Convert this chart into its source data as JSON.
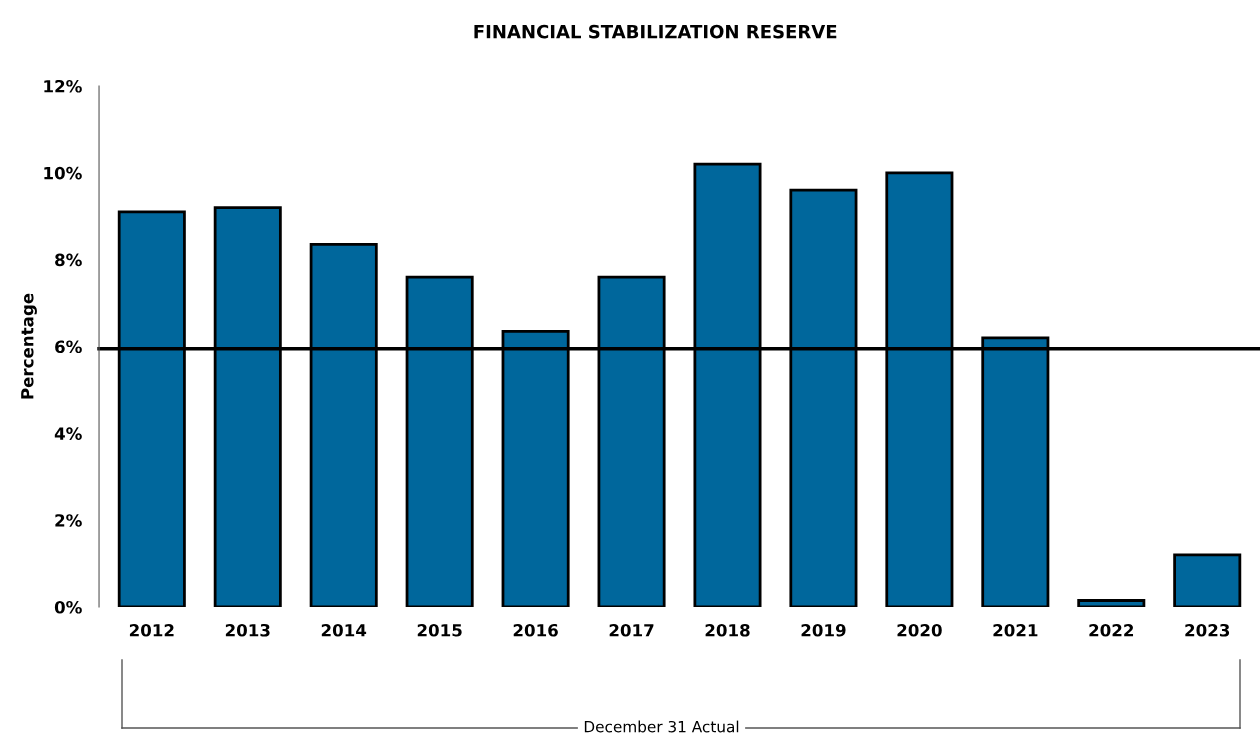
{
  "chart_data": {
    "type": "bar",
    "title": "FINANCIAL STABILIZATION RESERVE",
    "ylabel": "Percentage",
    "categories": [
      "2012",
      "2013",
      "2014",
      "2015",
      "2016",
      "2017",
      "2018",
      "2019",
      "2020",
      "2021",
      "2022",
      "2023"
    ],
    "values": [
      9.1,
      9.2,
      8.35,
      7.6,
      6.35,
      7.6,
      10.2,
      9.6,
      10.0,
      6.2,
      0.15,
      1.2
    ],
    "color": "#00679c",
    "ylim": [
      0,
      12
    ],
    "yticks": [
      {
        "value": 0,
        "label": "0%"
      },
      {
        "value": 2,
        "label": "2%"
      },
      {
        "value": 4,
        "label": "4%"
      },
      {
        "value": 6,
        "label": "6%"
      },
      {
        "value": 8,
        "label": "8%"
      },
      {
        "value": 10,
        "label": "10%"
      },
      {
        "value": 12,
        "label": "12%"
      }
    ],
    "ref_lines": [
      {
        "axis": "y",
        "value": 5.95,
        "label": null,
        "color": "#000000"
      }
    ],
    "annotations": [
      "December 31 Actual"
    ],
    "grid": false,
    "legend": false
  }
}
